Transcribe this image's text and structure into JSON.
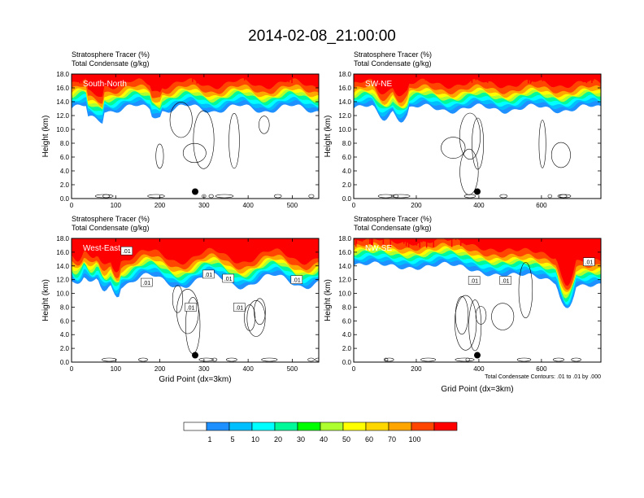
{
  "title": "2014-02-08_21:00:00",
  "chart_data": [
    {
      "type": "heatmap",
      "panel": "South-North",
      "subtitle_lines": [
        "Stratosphere Tracer   (%)",
        "Total Condensate   (g/kg)"
      ],
      "ylabel": "Height (km)",
      "xlabel": "",
      "xlim": [
        0,
        560
      ],
      "ylim": [
        0,
        18
      ],
      "xticks": [
        "0",
        "100",
        "200",
        "300",
        "400",
        "500"
      ],
      "xtick_values": [
        0,
        100,
        200,
        300,
        400,
        500
      ],
      "yticks": [
        "0.0",
        "2.0",
        "4.0",
        "6.0",
        "8.0",
        "10.0",
        "12.0",
        "14.0",
        "16.0",
        "18.0"
      ],
      "marker": {
        "x": 280,
        "y": 1.0
      },
      "contour_labels": []
    },
    {
      "type": "heatmap",
      "panel": "SW-NE",
      "subtitle_lines": [
        "Stratosphere Tracer   (%)",
        "Total Condensate   (g/kg)"
      ],
      "ylabel": "Height (km)",
      "xlabel": "",
      "xlim": [
        0,
        790
      ],
      "ylim": [
        0,
        18
      ],
      "xticks": [
        "0",
        "200",
        "400",
        "600"
      ],
      "xtick_values": [
        0,
        200,
        400,
        600
      ],
      "yticks": [
        "0.0",
        "2.0",
        "4.0",
        "6.0",
        "8.0",
        "10.0",
        "12.0",
        "14.0",
        "16.0",
        "18.0"
      ],
      "marker": {
        "x": 395,
        "y": 1.0
      },
      "contour_labels": []
    },
    {
      "type": "heatmap",
      "panel": "West-East",
      "subtitle_lines": [
        "Stratosphere Tracer   (%)",
        "Total Condensate   (g/kg)"
      ],
      "ylabel": "Height (km)",
      "xlabel": "Grid Point (dx=3km)",
      "xlim": [
        0,
        560
      ],
      "ylim": [
        0,
        18
      ],
      "xticks": [
        "0",
        "100",
        "200",
        "300",
        "400",
        "500"
      ],
      "xtick_values": [
        0,
        100,
        200,
        300,
        400,
        500
      ],
      "yticks": [
        "0.0",
        "2.0",
        "4.0",
        "6.0",
        "8.0",
        "10.0",
        "12.0",
        "14.0",
        "16.0",
        "18.0"
      ],
      "marker": {
        "x": 280,
        "y": 1.0
      },
      "contour_labels": [
        {
          "text": ".01",
          "x": 125,
          "y": 16.2
        },
        {
          "text": ".01",
          "x": 170,
          "y": 11.6
        },
        {
          "text": ".01",
          "x": 310,
          "y": 12.8
        },
        {
          "text": ".01",
          "x": 355,
          "y": 12.2
        },
        {
          "text": ".01",
          "x": 270,
          "y": 8.0
        },
        {
          "text": ".01",
          "x": 380,
          "y": 8.0
        },
        {
          "text": ".01",
          "x": 510,
          "y": 12.0
        }
      ]
    },
    {
      "type": "heatmap",
      "panel": "NW-SE",
      "subtitle_lines": [
        "Stratosphere Tracer   (%)",
        "Total Condensate   (g/kg)"
      ],
      "ylabel": "Height (km)",
      "xlabel": "Grid Point (dx=3km)",
      "xlim": [
        0,
        790
      ],
      "ylim": [
        0,
        18
      ],
      "xticks": [
        "0",
        "200",
        "400",
        "600"
      ],
      "xtick_values": [
        0,
        200,
        400,
        600
      ],
      "yticks": [
        "0.0",
        "2.0",
        "4.0",
        "6.0",
        "8.0",
        "10.0",
        "12.0",
        "14.0",
        "16.0",
        "18.0"
      ],
      "marker": {
        "x": 395,
        "y": 1.0
      },
      "contour_labels": [
        {
          "text": ".01",
          "x": 385,
          "y": 11.9
        },
        {
          "text": ".01",
          "x": 485,
          "y": 11.9
        },
        {
          "text": ".01",
          "x": 752,
          "y": 14.6
        }
      ],
      "footnote": "Total Condensate Contours: .01 to .01 by .000"
    }
  ],
  "colorbar": {
    "labels": [
      "1",
      "5",
      "10",
      "20",
      "30",
      "40",
      "50",
      "60",
      "70",
      "100"
    ],
    "colors": [
      "#ffffff",
      "#1e90ff",
      "#00bfff",
      "#00ffff",
      "#00fa9a",
      "#00ff00",
      "#adff2f",
      "#ffff00",
      "#ffd700",
      "#ffa500",
      "#ff4500",
      "#ff0000"
    ]
  }
}
